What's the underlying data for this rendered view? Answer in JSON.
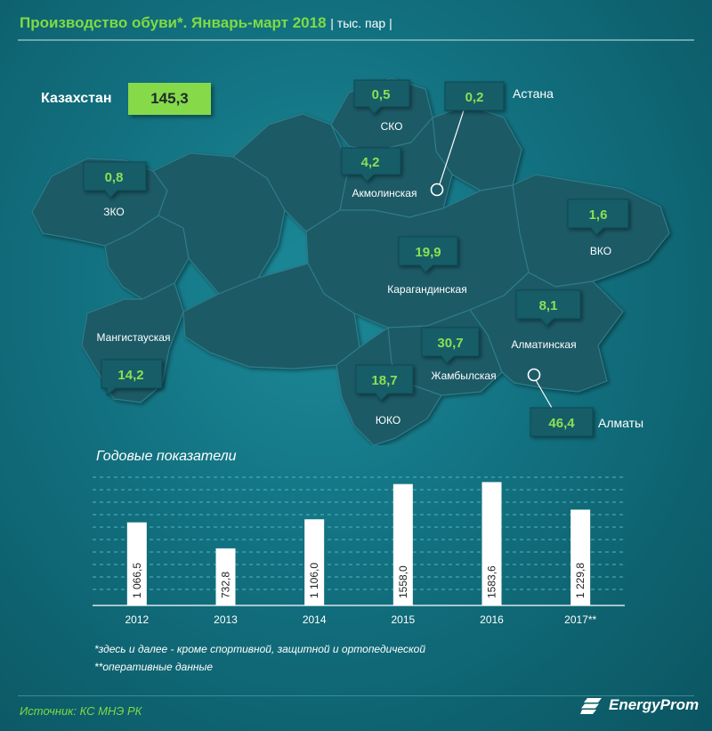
{
  "header": {
    "title": "Производство обуви*. Январь-март 2018",
    "unit": "| тыс. пар |"
  },
  "total": {
    "label": "Казахстан",
    "value": "145,3"
  },
  "regions": [
    {
      "name": "СКО",
      "value": "0,5"
    },
    {
      "name": "Астана",
      "value": "0,2"
    },
    {
      "name": "Акмолинская",
      "value": "4,2"
    },
    {
      "name": "ЗКО",
      "value": "0,8"
    },
    {
      "name": "ВКО",
      "value": "1,6"
    },
    {
      "name": "Карагандинская",
      "value": "19,9"
    },
    {
      "name": "Мангистауская",
      "value": "14,2"
    },
    {
      "name": "Алматинская",
      "value": "8,1"
    },
    {
      "name": "Жамбылская",
      "value": "30,7"
    },
    {
      "name": "ЮКО",
      "value": "18,7"
    },
    {
      "name": "Алматы",
      "value": "46,4"
    }
  ],
  "chart_data": {
    "type": "bar",
    "title": "Годовые показатели",
    "categories": [
      "2012",
      "2013",
      "2014",
      "2015",
      "2016",
      "2017**"
    ],
    "values": [
      1066.5,
      732.8,
      1106.0,
      1558.0,
      1583.6,
      1229.8
    ],
    "value_labels": [
      "1 066,5",
      "732,8",
      "1 106,0",
      "1558,0",
      "1583,6",
      "1 229,8"
    ],
    "ylim": [
      0,
      1600
    ],
    "grid": true,
    "bar_color": "#ffffff"
  },
  "footnotes": {
    "note1": "*здесь и далее - кроме спортивной, защитной и ортопедической",
    "note2": "**оперативные данные"
  },
  "source": "Источник: КС МНЭ РК",
  "logo": {
    "text": "EnergyProm"
  },
  "colors": {
    "accent_green": "#7fdb43",
    "map_fill": "#1a5a66",
    "background": "#12707f"
  }
}
